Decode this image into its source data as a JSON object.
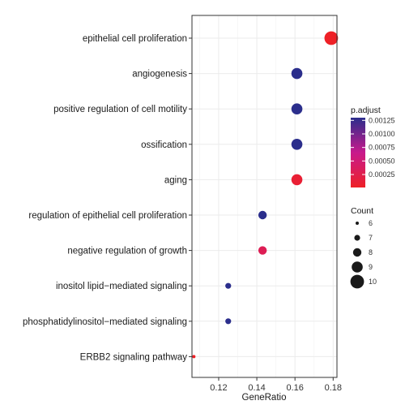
{
  "chart_data": {
    "type": "scatter",
    "subtype": "dot-plot",
    "xlabel": "GeneRatio",
    "x_ticks": [
      "0.12",
      "0.14",
      "0.16",
      "0.18"
    ],
    "xlim": [
      0.106,
      0.182
    ],
    "grid": true,
    "legend_placement": "right",
    "categories": [
      "epithelial cell proliferation",
      "angiogenesis",
      "positive regulation of cell motility",
      "ossification",
      "aging",
      "regulation of epithelial cell proliferation",
      "negative regulation of growth",
      "inositol lipid−mediated signaling",
      "phosphatidylinositol−mediated signaling",
      "ERBB2 signaling pathway"
    ],
    "points": [
      {
        "category": "epithelial cell proliferation",
        "x": 0.179,
        "count": 10,
        "p_adjust": 1e-05
      },
      {
        "category": "angiogenesis",
        "x": 0.161,
        "count": 9,
        "p_adjust": 0.0013
      },
      {
        "category": "positive regulation of cell motility",
        "x": 0.161,
        "count": 9,
        "p_adjust": 0.0013
      },
      {
        "category": "ossification",
        "x": 0.161,
        "count": 9,
        "p_adjust": 0.0013
      },
      {
        "category": "aging",
        "x": 0.161,
        "count": 9,
        "p_adjust": 0.0001
      },
      {
        "category": "regulation of epithelial cell proliferation",
        "x": 0.143,
        "count": 8,
        "p_adjust": 0.0013
      },
      {
        "category": "negative regulation of growth",
        "x": 0.143,
        "count": 8,
        "p_adjust": 0.0003
      },
      {
        "category": "inositol lipid−mediated signaling",
        "x": 0.125,
        "count": 7,
        "p_adjust": 0.0013
      },
      {
        "category": "phosphatidylinositol−mediated signaling",
        "x": 0.125,
        "count": 7,
        "p_adjust": 0.0013
      },
      {
        "category": "ERBB2 signaling pathway",
        "x": 0.107,
        "count": 6,
        "p_adjust": 1e-05
      }
    ],
    "color_legend": {
      "title": "p.adjust",
      "ticks": [
        "0.00125",
        "0.00100",
        "0.00075",
        "0.00050",
        "0.00025"
      ],
      "tick_values": [
        0.00125,
        0.001,
        0.00075,
        0.0005,
        0.00025
      ],
      "range": [
        1e-05,
        0.0013
      ],
      "low_color": "#ee2026",
      "mid_color": "#c81a8c",
      "high_color": "#2b2e8c"
    },
    "size_legend": {
      "title": "Count",
      "values": [
        "6",
        "7",
        "8",
        "9",
        "10"
      ]
    }
  }
}
